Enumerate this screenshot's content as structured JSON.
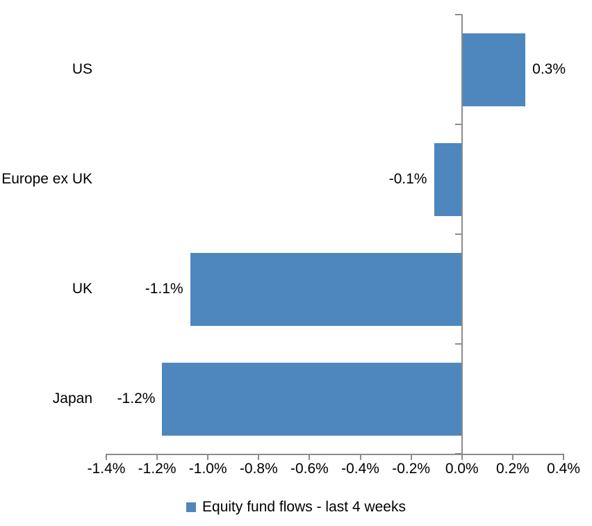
{
  "chart_data": {
    "type": "bar",
    "orientation": "horizontal",
    "title": "",
    "xlabel": "",
    "ylabel": "",
    "categories": [
      "US",
      "Europe ex UK",
      "UK",
      "Japan"
    ],
    "series": [
      {
        "name": "Equity fund flows - last 4 weeks",
        "values": [
          0.3,
          -0.1,
          -1.1,
          -1.2
        ],
        "value_labels": [
          "0.3%",
          "-0.1%",
          "-1.1%",
          "-1.2%"
        ],
        "plotted_values_estimate": [
          0.25,
          -0.11,
          -1.07,
          -1.18
        ]
      }
    ],
    "xlim": [
      -1.4,
      0.4
    ],
    "x_tick_step": 0.2,
    "x_tick_labels": [
      "-1.4%",
      "-1.2%",
      "-1.0%",
      "-0.8%",
      "-0.6%",
      "-0.4%",
      "-0.2%",
      "0.0%",
      "0.2%",
      "0.4%"
    ],
    "grid": false,
    "legend_position": "bottom",
    "legend": {
      "label": "Equity fund flows - last 4 weeks"
    },
    "colors": {
      "bar": "#4E87BE",
      "axis": "#8C8C8C",
      "text": "#000000",
      "background": "#FFFFFF"
    }
  }
}
